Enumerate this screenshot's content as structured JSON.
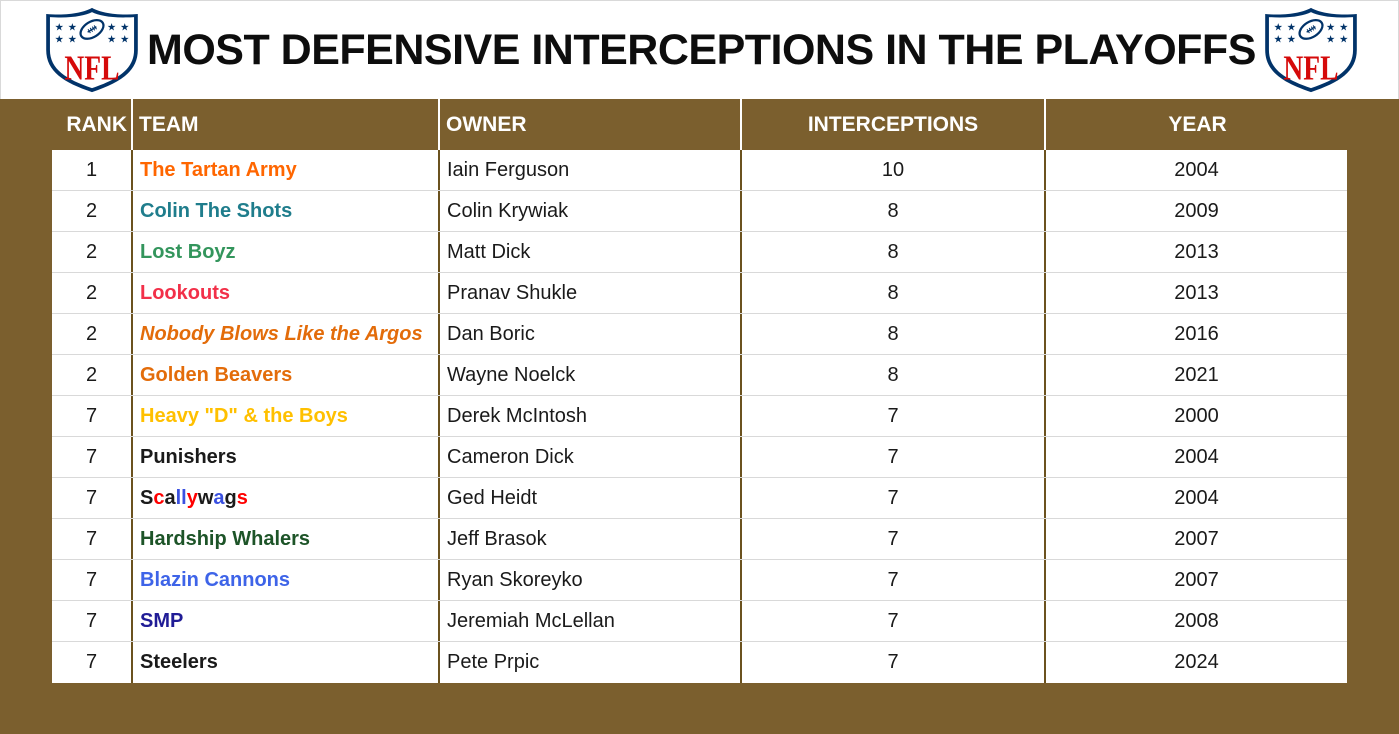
{
  "logo": {
    "text": "NFL"
  },
  "colors": {
    "table_brown": "#7B5F2E",
    "column_divider": "#6B521F",
    "row_divider": "#D9D9D9",
    "header_text": "#FFFFFF",
    "logo_navy": "#013369",
    "logo_red": "#D50A0A"
  },
  "chart_data": {
    "type": "table",
    "title": "MOST DEFENSIVE INTERCEPTIONS IN THE PLAYOFFS",
    "columns": [
      {
        "label": "RANK",
        "align": "right"
      },
      {
        "label": "TEAM",
        "align": "left"
      },
      {
        "label": "OWNER",
        "align": "left"
      },
      {
        "label": "INTERCEPTIONS",
        "align": "center"
      },
      {
        "label": "YEAR",
        "align": "center"
      }
    ],
    "rows": [
      {
        "rank": "1",
        "team": "The Tartan Army",
        "team_color": "#FF6600",
        "owner": "Iain Ferguson",
        "interceptions": "10",
        "year": "2004"
      },
      {
        "rank": "2",
        "team": "Colin The Shots",
        "team_color": "#1F7D8C",
        "owner": "Colin Krywiak",
        "interceptions": "8",
        "year": "2009"
      },
      {
        "rank": "2",
        "team": "Lost Boyz",
        "team_color": "#33955C",
        "owner": "Matt Dick",
        "interceptions": "8",
        "year": "2013"
      },
      {
        "rank": "2",
        "team": "Lookouts",
        "team_color": "#F23049",
        "owner": "Pranav Shukle",
        "interceptions": "8",
        "year": "2013"
      },
      {
        "rank": "2",
        "team": "Nobody Blows Like the Argos",
        "team_color": "#E36C0A",
        "team_italic": true,
        "owner": "Dan Boric",
        "interceptions": "8",
        "year": "2016"
      },
      {
        "rank": "2",
        "team": "Golden Beavers",
        "team_color": "#E36C0A",
        "owner": "Wayne Noelck",
        "interceptions": "8",
        "year": "2021"
      },
      {
        "rank": "7",
        "team": "Heavy \"D\" & the Boys",
        "team_color": "#FFC000",
        "owner": "Derek McIntosh",
        "interceptions": "7",
        "year": "2000"
      },
      {
        "rank": "7",
        "team": "Punishers",
        "team_color": "#1A1A1A",
        "owner": "Cameron Dick",
        "interceptions": "7",
        "year": "2004"
      },
      {
        "rank": "7",
        "team": "Scallywags",
        "team_letters": [
          [
            "S",
            "#1A1A1A"
          ],
          [
            "c",
            "#FF0000"
          ],
          [
            "a",
            "#1A1A1A"
          ],
          [
            "l",
            "#3A50E0"
          ],
          [
            "l",
            "#3A50E0"
          ],
          [
            "y",
            "#FF0000"
          ],
          [
            "w",
            "#1A1A1A"
          ],
          [
            "a",
            "#3A50E0"
          ],
          [
            "g",
            "#1A1A1A"
          ],
          [
            "s",
            "#FF0000"
          ]
        ],
        "owner": "Ged Heidt",
        "interceptions": "7",
        "year": "2004"
      },
      {
        "rank": "7",
        "team": "Hardship Whalers",
        "team_color": "#1D5428",
        "owner": "Jeff Brasok",
        "interceptions": "7",
        "year": "2007"
      },
      {
        "rank": "7",
        "team": "Blazin Cannons",
        "team_color": "#3E64E8",
        "owner": "Ryan Skoreyko",
        "interceptions": "7",
        "year": "2007"
      },
      {
        "rank": "7",
        "team": "SMP",
        "team_color": "#201C96",
        "owner": "Jeremiah McLellan",
        "interceptions": "7",
        "year": "2008"
      },
      {
        "rank": "7",
        "team": "Steelers",
        "team_color": "#1A1A1A",
        "owner": "Pete Prpic",
        "interceptions": "7",
        "year": "2024"
      }
    ]
  }
}
